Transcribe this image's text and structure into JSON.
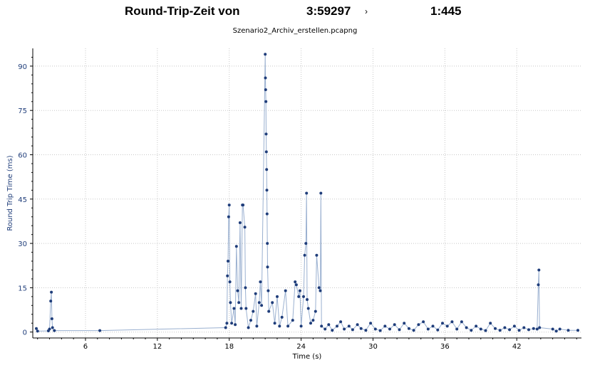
{
  "header": {
    "title_prefix": "Round-Trip-Zeit von",
    "title_source_port": "3:59297",
    "title_arrow": "›",
    "title_dest_port": "1:445",
    "subtitle": "Szenario2_Archiv_erstellen.pcapng"
  },
  "colors": {
    "series": "#1f3d7a",
    "line": "#9ab0d0",
    "grid": "#c8c8c8",
    "ylabel": "#1f3d7a",
    "axis": "#000000"
  },
  "chart_data": {
    "type": "scatter",
    "title": "Round-Trip-Zeit von 3:59297 › 1:445",
    "subtitle": "Szenario2_Archiv_erstellen.pcapng",
    "xlabel": "Time (s)",
    "ylabel": "Round Trip Time (ms)",
    "xlim": [
      1.6,
      47.4
    ],
    "ylim": [
      -2,
      96
    ],
    "x_ticks": [
      6,
      12,
      18,
      24,
      30,
      36,
      42
    ],
    "y_ticks": [
      0,
      15,
      30,
      45,
      60,
      75,
      90
    ],
    "grid": true,
    "connected": true,
    "series": [
      {
        "points": [
          [
            1.9,
            1.2
          ],
          [
            2.0,
            0.3
          ],
          [
            2.9,
            0.4
          ],
          [
            3.0,
            1.0
          ],
          [
            3.1,
            10.5
          ],
          [
            3.15,
            13.5
          ],
          [
            3.2,
            4.5
          ],
          [
            3.25,
            1.5
          ],
          [
            3.4,
            0.5
          ],
          [
            7.2,
            0.5
          ],
          [
            17.7,
            1.5
          ],
          [
            17.8,
            3.0
          ],
          [
            17.85,
            19.0
          ],
          [
            17.9,
            24.0
          ],
          [
            17.95,
            39.0
          ],
          [
            18.0,
            43.0
          ],
          [
            18.05,
            17.0
          ],
          [
            18.1,
            10.0
          ],
          [
            18.2,
            3.0
          ],
          [
            18.4,
            8.0
          ],
          [
            18.5,
            2.5
          ],
          [
            18.6,
            29.0
          ],
          [
            18.7,
            14.0
          ],
          [
            18.8,
            10.0
          ],
          [
            18.9,
            37.0
          ],
          [
            19.0,
            8.0
          ],
          [
            19.1,
            43.0
          ],
          [
            19.15,
            43.0
          ],
          [
            19.3,
            35.5
          ],
          [
            19.35,
            15.0
          ],
          [
            19.4,
            8.0
          ],
          [
            19.6,
            1.5
          ],
          [
            19.8,
            4.0
          ],
          [
            20.0,
            7.0
          ],
          [
            20.2,
            13.0
          ],
          [
            20.3,
            2.0
          ],
          [
            20.5,
            10.0
          ],
          [
            20.6,
            17.0
          ],
          [
            20.7,
            9.0
          ],
          [
            21.0,
            94.0
          ],
          [
            21.02,
            86.0
          ],
          [
            21.04,
            82.0
          ],
          [
            21.06,
            78.0
          ],
          [
            21.08,
            67.0
          ],
          [
            21.1,
            61.0
          ],
          [
            21.12,
            55.0
          ],
          [
            21.14,
            48.0
          ],
          [
            21.16,
            40.0
          ],
          [
            21.18,
            30.0
          ],
          [
            21.2,
            22.0
          ],
          [
            21.25,
            14.0
          ],
          [
            21.3,
            7.0
          ],
          [
            21.6,
            10.0
          ],
          [
            21.8,
            3.0
          ],
          [
            22.0,
            12.0
          ],
          [
            22.2,
            2.0
          ],
          [
            22.4,
            5.0
          ],
          [
            22.7,
            14.0
          ],
          [
            22.9,
            2.0
          ],
          [
            23.3,
            4.0
          ],
          [
            23.5,
            17.0
          ],
          [
            23.6,
            16.0
          ],
          [
            23.8,
            12.0
          ],
          [
            23.9,
            14.0
          ],
          [
            24.0,
            2.0
          ],
          [
            24.2,
            12.0
          ],
          [
            24.3,
            26.0
          ],
          [
            24.4,
            30.0
          ],
          [
            24.45,
            47.0
          ],
          [
            24.5,
            11.0
          ],
          [
            24.6,
            8.0
          ],
          [
            24.8,
            3.0
          ],
          [
            25.0,
            4.0
          ],
          [
            25.2,
            7.0
          ],
          [
            25.3,
            26.0
          ],
          [
            25.5,
            15.0
          ],
          [
            25.6,
            14.0
          ],
          [
            25.65,
            47.0
          ],
          [
            25.7,
            2.0
          ],
          [
            26.0,
            1.0
          ],
          [
            26.3,
            2.5
          ],
          [
            26.6,
            0.6
          ],
          [
            27.0,
            2.0
          ],
          [
            27.3,
            3.5
          ],
          [
            27.6,
            1.0
          ],
          [
            28.0,
            2.0
          ],
          [
            28.3,
            0.8
          ],
          [
            28.7,
            2.5
          ],
          [
            29.0,
            1.2
          ],
          [
            29.4,
            0.6
          ],
          [
            29.8,
            3.0
          ],
          [
            30.2,
            1.0
          ],
          [
            30.6,
            0.5
          ],
          [
            31.0,
            2.0
          ],
          [
            31.4,
            1.0
          ],
          [
            31.8,
            2.5
          ],
          [
            32.2,
            0.8
          ],
          [
            32.6,
            3.0
          ],
          [
            33.0,
            1.2
          ],
          [
            33.4,
            0.6
          ],
          [
            33.8,
            2.5
          ],
          [
            34.2,
            3.5
          ],
          [
            34.6,
            1.0
          ],
          [
            35.0,
            2.0
          ],
          [
            35.4,
            0.7
          ],
          [
            35.8,
            3.0
          ],
          [
            36.2,
            2.0
          ],
          [
            36.6,
            3.5
          ],
          [
            37.0,
            1.0
          ],
          [
            37.4,
            3.5
          ],
          [
            37.8,
            1.5
          ],
          [
            38.2,
            0.6
          ],
          [
            38.6,
            2.0
          ],
          [
            39.0,
            1.0
          ],
          [
            39.4,
            0.5
          ],
          [
            39.8,
            3.0
          ],
          [
            40.2,
            1.2
          ],
          [
            40.6,
            0.6
          ],
          [
            41.0,
            1.5
          ],
          [
            41.4,
            0.8
          ],
          [
            41.8,
            2.0
          ],
          [
            42.2,
            0.6
          ],
          [
            42.6,
            1.5
          ],
          [
            43.0,
            0.8
          ],
          [
            43.4,
            1.2
          ],
          [
            43.7,
            1.0
          ],
          [
            43.8,
            16.0
          ],
          [
            43.85,
            21.0
          ],
          [
            43.9,
            1.5
          ],
          [
            45.0,
            1.0
          ],
          [
            45.3,
            0.3
          ],
          [
            45.6,
            1.0
          ],
          [
            46.3,
            0.6
          ],
          [
            47.1,
            0.6
          ]
        ]
      }
    ]
  }
}
